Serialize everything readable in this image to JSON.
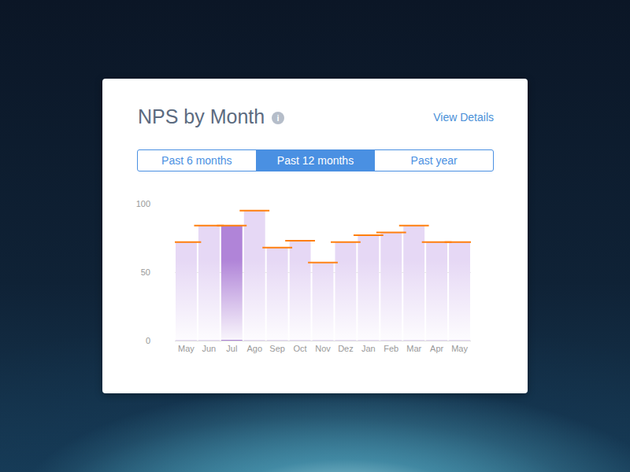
{
  "chart_data": {
    "type": "bar",
    "title": "NPS by Month",
    "categories": [
      "May",
      "Jun",
      "Jul",
      "Ago",
      "Sep",
      "Oct",
      "Nov",
      "Dez",
      "Jan",
      "Feb",
      "Mar",
      "Apr",
      "May"
    ],
    "values": [
      72,
      84,
      84,
      95,
      68,
      73,
      57,
      72,
      77,
      79,
      84,
      72,
      72
    ],
    "colors": [
      "#e6d8f5",
      "#e6d8f5",
      "#b084d8",
      "#e6d8f5",
      "#e6d8f5",
      "#e6d8f5",
      "#e6d8f5",
      "#e6d8f5",
      "#e6d8f5",
      "#e6d8f5",
      "#e6d8f5",
      "#e6d8f5",
      "#e6d8f5"
    ],
    "ylim": [
      0,
      100
    ],
    "yticks": [
      0,
      50,
      100
    ],
    "grid": true
  },
  "card": {
    "info_icon": "i",
    "link": "View Details",
    "buttons": [
      "Past 6 months",
      "Past 12 months",
      "Past year"
    ],
    "active_button": "Past 12 months"
  }
}
